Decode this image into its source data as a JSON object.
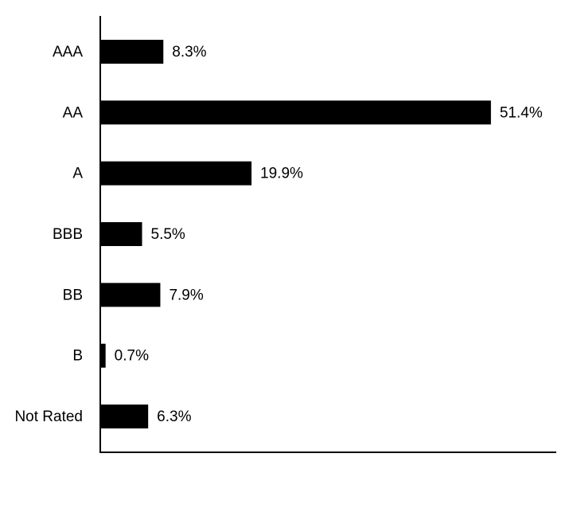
{
  "chart_data": {
    "type": "bar",
    "orientation": "horizontal",
    "categories": [
      "AAA",
      "AA",
      "A",
      "BBB",
      "BB",
      "B",
      "Not Rated"
    ],
    "values": [
      8.3,
      51.4,
      19.9,
      5.5,
      7.9,
      0.7,
      6.3
    ],
    "value_labels": [
      "8.3%",
      "51.4%",
      "19.9%",
      "5.5%",
      "7.9%",
      "0.7%",
      "6.3%"
    ],
    "color": "#000000",
    "xlim": [
      0,
      60
    ]
  }
}
